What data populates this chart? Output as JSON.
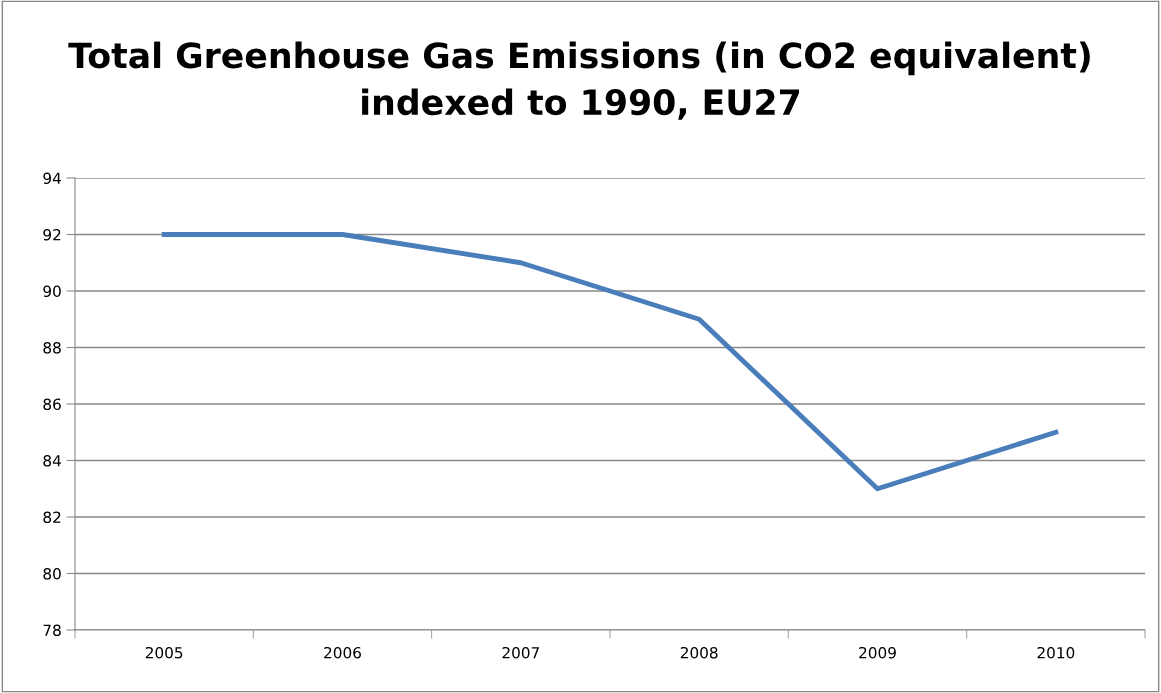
{
  "chart_data": {
    "type": "line",
    "title": "Total Greenhouse Gas Emissions (in CO2 equivalent) indexed to 1990, EU27",
    "categories": [
      "2005",
      "2006",
      "2007",
      "2008",
      "2009",
      "2010"
    ],
    "series": [
      {
        "color": "#4a7ebb",
        "values": [
          92,
          92,
          91,
          89,
          83,
          85
        ]
      }
    ],
    "ylim": [
      78,
      94
    ],
    "yticks": [
      78,
      80,
      82,
      84,
      86,
      88,
      90,
      92,
      94
    ],
    "grid": "y",
    "marker": "none",
    "line_style": "solid"
  }
}
